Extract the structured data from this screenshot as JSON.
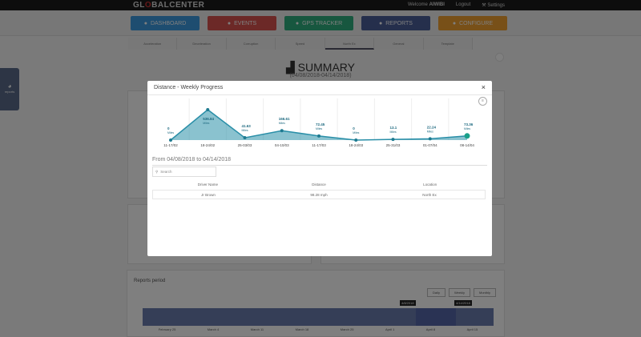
{
  "topbar": {
    "logo_left": "GL",
    "logo_o": "O",
    "logo_right": "BALCENTER",
    "welcome": "Welcome",
    "user": "AIWIBI",
    "logout": "Logout",
    "settings": "Settings"
  },
  "nav": [
    {
      "label": "DASHBOARD",
      "color": "#3d9be0",
      "icon": "globe-icon"
    },
    {
      "label": "EVENTS",
      "color": "#d9534f",
      "icon": "warning-icon"
    },
    {
      "label": "GPS TRACKER",
      "color": "#2fae7e",
      "icon": "user-icon"
    },
    {
      "label": "REPORTS",
      "color": "#4a5e99",
      "icon": "pie-icon"
    },
    {
      "label": "CONFIGURE",
      "color": "#f0a030",
      "icon": "user-icon"
    }
  ],
  "subtabs": [
    "Acceleration",
    "Deceleration",
    "Corruption",
    "Speed",
    "North Ex",
    "General",
    "Template"
  ],
  "summary": {
    "title": "SUMMARY",
    "dates": "(04/08/2018-04/14/2018)"
  },
  "sidetab": "reports",
  "reports_period": {
    "title": "Reports period",
    "buttons": [
      "Daily",
      "Weekly",
      "Monthly"
    ],
    "tooltip_start": "4/8/2018",
    "tooltip_end": "4/14/2018",
    "axis": [
      "February 25",
      "March 4",
      "March 11",
      "March 18",
      "March 25",
      "April 1",
      "April 8",
      "April 15"
    ]
  },
  "modal": {
    "title": "Distance - Weekly Progress",
    "close": "×",
    "range": "From 04/08/2018 to 04/14/2018",
    "search_placeholder": "Search",
    "columns": [
      "Driver Name",
      "Distance",
      "Location"
    ],
    "rows": [
      [
        "Jr Brown",
        "98.28 mph",
        "North Ex"
      ]
    ]
  },
  "chart_data": {
    "type": "area",
    "unit": "Miles",
    "color": "#2a8fa8",
    "categories": [
      "11-17/02",
      "18-24/02",
      "25-03/03",
      "04-10/03",
      "11-17/03",
      "18-24/03",
      "25-31/03",
      "01-07/04",
      "08-14/04"
    ],
    "values": [
      0,
      536.84,
      41.63,
      166.61,
      72.45,
      0,
      13.1,
      22.24,
      73.36
    ]
  }
}
